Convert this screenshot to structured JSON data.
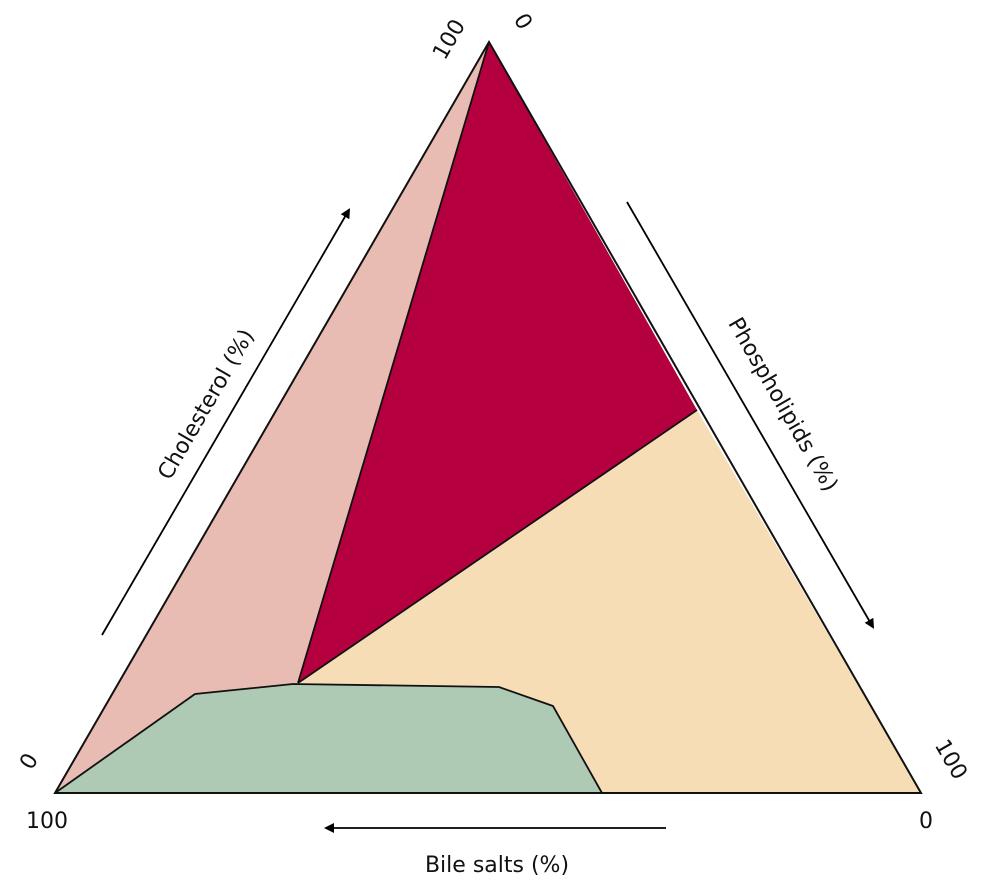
{
  "axes": [
    {
      "title": "Cholesterol (%)",
      "start": "0",
      "end": "100"
    },
    {
      "title": "Phospholipids (%)",
      "start": "0",
      "end": "100"
    },
    {
      "title": "Bile salts (%)",
      "start": "0",
      "end": "100"
    }
  ]
}
